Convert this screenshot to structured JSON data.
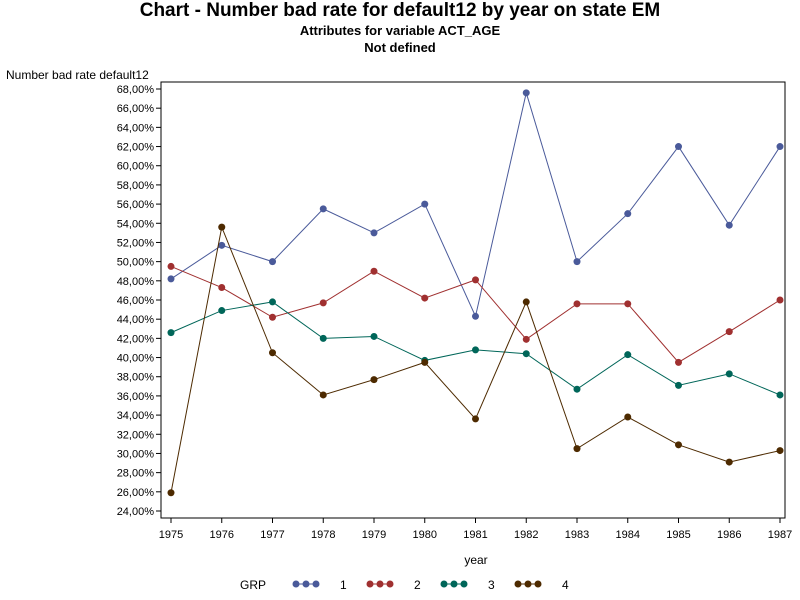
{
  "titles": {
    "title": "Chart - Number bad rate for default12 by year on state EM",
    "subtitle1": "Attributes for variable ACT_AGE",
    "subtitle2": "Not defined"
  },
  "chart_data": {
    "type": "line",
    "ylabel": "Number bad rate default12",
    "xlabel": "year",
    "x": [
      1975,
      1976,
      1977,
      1978,
      1979,
      1980,
      1981,
      1982,
      1983,
      1984,
      1985,
      1986,
      1987
    ],
    "ylim": [
      24,
      68
    ],
    "yticks": [
      24,
      26,
      28,
      30,
      32,
      34,
      36,
      38,
      40,
      42,
      44,
      46,
      48,
      50,
      52,
      54,
      56,
      58,
      60,
      62,
      64,
      66,
      68
    ],
    "ytick_labels": [
      "24,00%",
      "26,00%",
      "28,00%",
      "30,00%",
      "32,00%",
      "34,00%",
      "36,00%",
      "38,00%",
      "40,00%",
      "42,00%",
      "44,00%",
      "46,00%",
      "48,00%",
      "50,00%",
      "52,00%",
      "54,00%",
      "56,00%",
      "58,00%",
      "60,00%",
      "62,00%",
      "64,00%",
      "66,00%",
      "68,00%"
    ],
    "legend_title": "GRP",
    "legend_position": "bottom",
    "grid": false,
    "series": [
      {
        "name": "1",
        "color": "#4a5a9a",
        "values": [
          48.2,
          51.7,
          50.0,
          55.5,
          53.0,
          56.0,
          44.3,
          67.6,
          50.0,
          55.0,
          62.0,
          53.8,
          62.0
        ]
      },
      {
        "name": "2",
        "color": "#a03030",
        "values": [
          49.5,
          47.3,
          44.2,
          45.7,
          49.0,
          46.2,
          48.1,
          41.9,
          45.6,
          45.6,
          39.5,
          42.7,
          46.0
        ]
      },
      {
        "name": "3",
        "color": "#006659",
        "values": [
          42.6,
          44.9,
          45.8,
          42.0,
          42.2,
          39.7,
          40.8,
          40.4,
          36.7,
          40.3,
          37.1,
          38.3,
          36.1
        ]
      },
      {
        "name": "4",
        "color": "#4d2a00",
        "values": [
          25.9,
          53.6,
          40.5,
          36.1,
          37.7,
          39.5,
          33.6,
          45.8,
          30.5,
          33.8,
          30.9,
          29.1,
          30.3
        ]
      }
    ]
  }
}
